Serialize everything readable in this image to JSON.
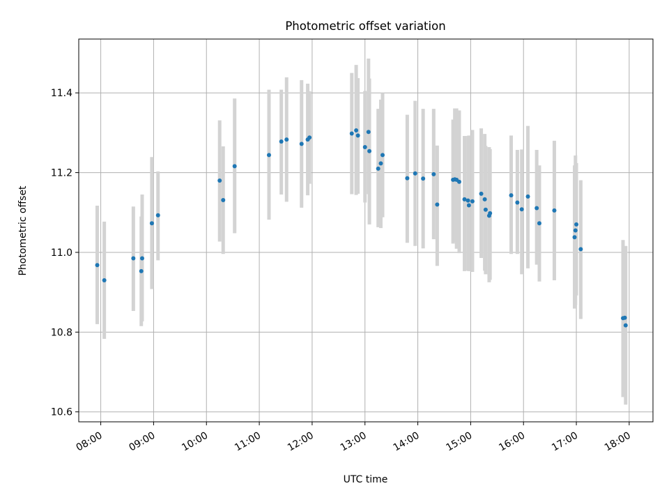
{
  "chart_data": {
    "type": "scatter",
    "title": "Photometric offset variation",
    "xlabel": "UTC time",
    "ylabel": "Photometric offset",
    "x_unit": "UTC hours",
    "xlim": [
      "07:35",
      "18:27"
    ],
    "ylim": [
      10.575,
      11.535
    ],
    "grid": true,
    "x_ticks": [
      "08:00",
      "09:00",
      "10:00",
      "11:00",
      "12:00",
      "13:00",
      "14:00",
      "15:00",
      "16:00",
      "17:00",
      "18:00"
    ],
    "y_ticks": [
      "10.6",
      "10.8",
      "11.0",
      "11.2",
      "11.4"
    ],
    "colors": {
      "point": "#1f77b4",
      "errorbar": "#d3d3d3",
      "grid": "#b0b0b0"
    },
    "series": [
      {
        "x": [
          "07:56",
          "08:04",
          "08:37",
          "08:46",
          "08:47",
          "08:58",
          "09:05",
          "10:15",
          "10:19",
          "10:32",
          "11:11",
          "11:25",
          "11:31",
          "11:48",
          "11:55",
          "11:57",
          "12:45",
          "12:50",
          "12:52",
          "13:00",
          "13:04",
          "13:05",
          "13:15",
          "13:18",
          "13:20",
          "13:48",
          "13:57",
          "14:06",
          "14:18",
          "14:22",
          "14:40",
          "14:42",
          "14:44",
          "14:47",
          "14:53",
          "14:57",
          "14:58",
          "15:02",
          "15:12",
          "15:16",
          "15:17",
          "15:21",
          "15:22",
          "15:46",
          "15:53",
          "15:58",
          "16:05",
          "16:15",
          "16:18",
          "16:35",
          "16:58",
          "16:59",
          "17:00",
          "17:05",
          "17:53",
          "17:55",
          "17:56"
        ],
        "y": [
          10.968,
          10.93,
          10.985,
          10.953,
          10.985,
          11.073,
          11.093,
          11.18,
          11.131,
          11.216,
          11.244,
          11.278,
          11.283,
          11.272,
          11.283,
          11.288,
          11.298,
          11.306,
          11.293,
          11.264,
          11.302,
          11.254,
          11.21,
          11.223,
          11.244,
          11.186,
          11.198,
          11.185,
          11.196,
          11.12,
          11.182,
          11.183,
          11.182,
          11.177,
          11.133,
          11.13,
          11.118,
          11.128,
          11.147,
          11.133,
          11.107,
          11.092,
          11.098,
          11.143,
          11.125,
          11.108,
          11.14,
          11.111,
          11.073,
          11.105,
          11.038,
          11.055,
          11.07,
          11.008,
          10.835,
          10.836,
          10.817
        ],
        "yerr_low": [
          0.148,
          0.147,
          0.132,
          0.138,
          0.158,
          0.165,
          0.113,
          0.153,
          0.135,
          0.168,
          0.162,
          0.133,
          0.156,
          0.16,
          0.14,
          0.116,
          0.152,
          0.162,
          0.146,
          0.139,
          0.156,
          0.184,
          0.147,
          0.162,
          0.156,
          0.162,
          0.182,
          0.175,
          0.163,
          0.154,
          0.16,
          0.157,
          0.173,
          0.179,
          0.18,
          0.176,
          0.165,
          0.177,
          0.161,
          0.179,
          0.162,
          0.167,
          0.167,
          0.147,
          0.129,
          0.163,
          0.18,
          0.142,
          0.146,
          0.175,
          0.179,
          0.187,
          0.178,
          0.175,
          0.198,
          0.177,
          0.199
        ],
        "yerr_high": [
          0.149,
          0.147,
          0.13,
          0.137,
          0.16,
          0.166,
          0.11,
          0.151,
          0.135,
          0.17,
          0.164,
          0.13,
          0.156,
          0.16,
          0.14,
          0.116,
          0.152,
          0.164,
          0.144,
          0.141,
          0.184,
          0.182,
          0.15,
          0.16,
          0.156,
          0.159,
          0.182,
          0.175,
          0.164,
          0.148,
          0.151,
          0.178,
          0.179,
          0.179,
          0.159,
          0.162,
          0.175,
          0.179,
          0.164,
          0.164,
          0.16,
          0.172,
          0.161,
          0.15,
          0.132,
          0.15,
          0.177,
          0.146,
          0.145,
          0.175,
          0.18,
          0.188,
          0.154,
          0.173,
          0.196,
          0.178,
          0.199
        ]
      }
    ]
  }
}
